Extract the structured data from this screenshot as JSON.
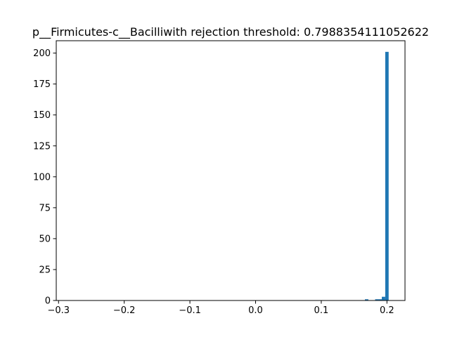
{
  "chart_data": {
    "type": "bar",
    "title": "p__Firmicutes-c__Bacilliwith rejection threshold: 0.7988354111052622",
    "xlabel": "",
    "ylabel": "",
    "xlim": [
      -0.3035,
      0.2275
    ],
    "ylim": [
      0,
      210
    ],
    "grid": false,
    "legend": "none",
    "bar_color": "#1f77b4",
    "bin_width": 0.0052,
    "bins": [
      {
        "x": 0.1665,
        "count": 1
      },
      {
        "x": 0.182,
        "count": 1
      },
      {
        "x": 0.187,
        "count": 1
      },
      {
        "x": 0.1922,
        "count": 3
      },
      {
        "x": 0.1974,
        "count": 201
      }
    ],
    "xticks": [
      {
        "value": -0.3,
        "label": "−0.3"
      },
      {
        "value": -0.2,
        "label": "−0.2"
      },
      {
        "value": -0.1,
        "label": "−0.1"
      },
      {
        "value": 0.0,
        "label": "0.0"
      },
      {
        "value": 0.1,
        "label": "0.1"
      },
      {
        "value": 0.2,
        "label": "0.2"
      }
    ],
    "yticks": [
      {
        "value": 0,
        "label": "0"
      },
      {
        "value": 25,
        "label": "25"
      },
      {
        "value": 50,
        "label": "50"
      },
      {
        "value": 75,
        "label": "75"
      },
      {
        "value": 100,
        "label": "100"
      },
      {
        "value": 125,
        "label": "125"
      },
      {
        "value": 150,
        "label": "150"
      },
      {
        "value": 175,
        "label": "175"
      },
      {
        "value": 200,
        "label": "200"
      }
    ]
  }
}
